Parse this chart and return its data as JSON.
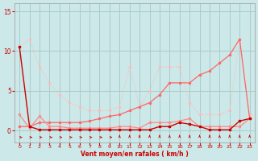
{
  "x": [
    0,
    1,
    2,
    3,
    4,
    5,
    6,
    7,
    8,
    9,
    10,
    11,
    12,
    13,
    14,
    15,
    16,
    17,
    18,
    19,
    20,
    21,
    22,
    23
  ],
  "line_dark_red": [
    10.5,
    0.5,
    0.1,
    0.1,
    0.1,
    0.1,
    0.1,
    0.1,
    0.1,
    0.1,
    0.1,
    0.1,
    0.1,
    0.1,
    0.5,
    0.5,
    1.0,
    0.8,
    0.5,
    0.1,
    0.1,
    0.1,
    1.2,
    1.5
  ],
  "line_pink_flat": [
    2.0,
    0.3,
    1.8,
    0.5,
    0.5,
    0.3,
    0.3,
    0.3,
    0.3,
    0.3,
    0.5,
    0.5,
    0.3,
    1.0,
    1.0,
    1.0,
    1.2,
    1.5,
    0.5,
    0.5,
    0.5,
    0.5,
    0.5,
    1.5
  ],
  "line_light_descend": [
    10.5,
    11.5,
    8.0,
    6.0,
    4.5,
    3.5,
    3.0,
    2.5,
    2.5,
    2.5,
    3.0,
    8.0,
    3.0,
    5.0,
    8.0,
    8.0,
    8.0,
    3.5,
    2.0,
    2.0,
    2.0,
    2.5,
    11.5,
    2.0
  ],
  "line_ascending": [
    0.5,
    0.5,
    1.0,
    1.0,
    1.0,
    1.0,
    1.0,
    1.2,
    1.5,
    1.8,
    2.0,
    2.5,
    3.0,
    3.5,
    4.5,
    6.0,
    6.0,
    6.0,
    7.0,
    7.5,
    8.5,
    9.5,
    11.5,
    1.5
  ],
  "arrows_right_x": [
    0,
    1,
    2,
    3,
    4,
    5,
    6,
    7,
    8,
    9
  ],
  "arrows_up_x": [
    10,
    11,
    12,
    13,
    14,
    15,
    16,
    17,
    18,
    19,
    20,
    21,
    22,
    23
  ],
  "bg_color": "#cce8e8",
  "grid_color": "#aacccc",
  "color_dark_red": "#cc0000",
  "color_pink_flat": "#ff8888",
  "color_light": "#ffbbbb",
  "color_ascending": "#ff6666",
  "color_arrow": "#cc0000",
  "color_xlabel": "#cc0000",
  "color_tick": "#cc0000",
  "xlabel": "Vent moyen/en rafales ( km/h )",
  "ylim": [
    -1.5,
    16
  ],
  "yticks": [
    0,
    5,
    10,
    15
  ]
}
